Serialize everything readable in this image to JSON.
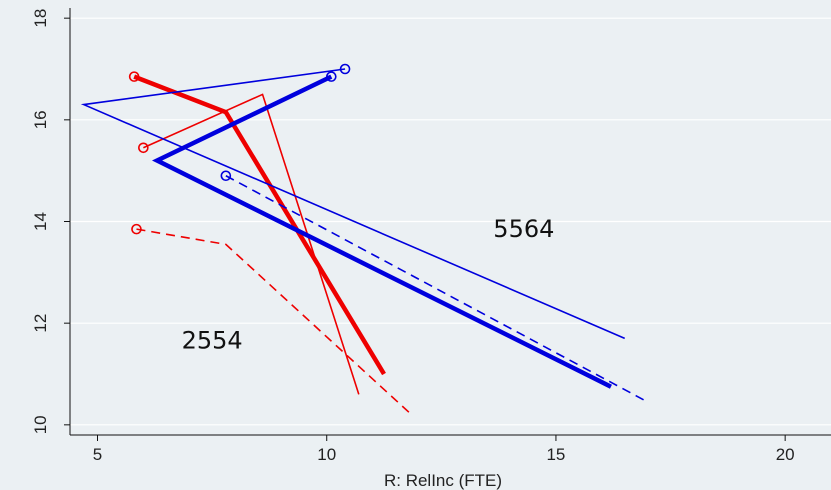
{
  "chart_data": {
    "type": "line",
    "title": "",
    "xlabel": "R: RelInc (FTE)",
    "ylabel": "",
    "xlim": [
      4.4,
      21
    ],
    "ylim": [
      9.8,
      18.2
    ],
    "xticks": [
      5,
      10,
      15,
      20
    ],
    "yticks": [
      10,
      12,
      14,
      16,
      18
    ],
    "grid": true,
    "legend": "none",
    "series": [
      {
        "color": "#ee0000",
        "style": "solid",
        "width": "thick",
        "marker_at_start": true,
        "x": [
          5.8,
          7.8,
          11.25
        ],
        "y": [
          16.85,
          16.15,
          11.0
        ]
      },
      {
        "color": "#ee0000",
        "style": "solid",
        "width": "thin",
        "marker_at_start": true,
        "x": [
          6.0,
          8.6,
          10.7
        ],
        "y": [
          15.45,
          16.5,
          10.6
        ]
      },
      {
        "color": "#ee0000",
        "style": "dashed",
        "width": "thin",
        "marker_at_start": true,
        "x": [
          5.85,
          7.8,
          11.85
        ],
        "y": [
          13.85,
          13.55,
          10.2
        ]
      },
      {
        "color": "#0000dd",
        "style": "solid",
        "width": "thick",
        "marker_at_start": true,
        "x": [
          10.1,
          6.3,
          16.2
        ],
        "y": [
          16.85,
          15.2,
          10.75
        ]
      },
      {
        "color": "#0000dd",
        "style": "solid",
        "width": "thin",
        "marker_at_start": true,
        "x": [
          10.4,
          4.7,
          16.5
        ],
        "y": [
          17.0,
          16.3,
          11.7
        ]
      },
      {
        "color": "#0000dd",
        "style": "dashed",
        "width": "thin",
        "marker_at_start": true,
        "x": [
          7.8,
          17.0
        ],
        "y": [
          14.9,
          10.45
        ]
      }
    ],
    "annotations": [
      {
        "text": "5564",
        "x": 14.3,
        "y": 13.7
      },
      {
        "text": "2554",
        "x": 7.5,
        "y": 11.5
      }
    ]
  }
}
